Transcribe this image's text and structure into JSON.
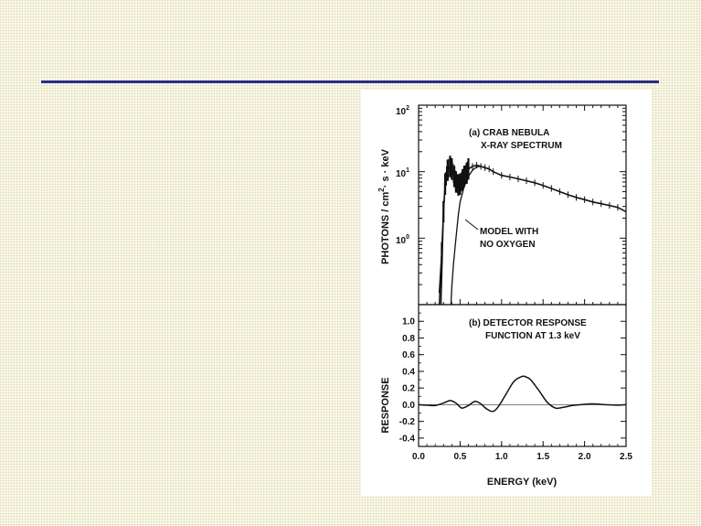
{
  "theme": {
    "rule_color": "#2a2d8a",
    "background": "#fbfaea",
    "ink": "#111111"
  },
  "chart_data": [
    {
      "id": "a",
      "type": "line",
      "title": "(a) CRAB NEBULA X-RAY SPECTRUM",
      "title_lines": [
        "(a) CRAB NEBULA",
        "X-RAY SPECTRUM"
      ],
      "ylabel": "PHOTONS / cm²· s · keV",
      "ylabel_parts": [
        "PHOTONS / cm",
        "2",
        "· s · keV"
      ],
      "xlabel": "",
      "yscale": "log",
      "xlim": [
        0,
        2.5
      ],
      "ylim": [
        0.1,
        100
      ],
      "yticks": [
        {
          "value": 100,
          "base": "10",
          "exp": "2"
        },
        {
          "value": 10,
          "base": "10",
          "exp": "1"
        },
        {
          "value": 1,
          "base": "10",
          "exp": "0"
        }
      ],
      "annotations": [
        {
          "lines": [
            "MODEL WITH",
            "NO OXYGEN"
          ],
          "at": [
            0.63,
            2.0
          ],
          "arrow_to": [
            0.5,
            4.2
          ]
        }
      ],
      "series": [
        {
          "role": "measured",
          "x": [
            0.25,
            0.28,
            0.3,
            0.32,
            0.35,
            0.38,
            0.4,
            0.43,
            0.45,
            0.48,
            0.5,
            0.53,
            0.55,
            0.58,
            0.6,
            0.65,
            0.7,
            0.75,
            0.8,
            0.85,
            0.9,
            1.0,
            1.1,
            1.2,
            1.3,
            1.4,
            1.5,
            1.6,
            1.7,
            1.8,
            1.9,
            2.0,
            2.1,
            2.2,
            2.3,
            2.4,
            2.5
          ],
          "y": [
            0.15,
            0.6,
            2.5,
            6.5,
            10.5,
            12.0,
            11.0,
            8.5,
            7.0,
            6.3,
            6.5,
            7.5,
            8.5,
            9.5,
            11.0,
            12.0,
            12.5,
            12.0,
            11.5,
            11.0,
            10.0,
            8.8,
            8.3,
            7.8,
            7.3,
            6.8,
            6.2,
            5.6,
            5.0,
            4.5,
            4.1,
            3.8,
            3.5,
            3.3,
            3.1,
            2.9,
            2.5
          ]
        },
        {
          "role": "model_no_oxygen",
          "x": [
            0.39,
            0.4,
            0.42,
            0.45,
            0.48,
            0.5,
            0.55,
            0.6,
            0.65,
            0.7,
            0.75,
            0.8
          ],
          "y": [
            0.1,
            0.18,
            0.4,
            1.0,
            2.3,
            3.5,
            6.0,
            8.5,
            10.5,
            11.8,
            12.0,
            11.5
          ]
        }
      ]
    },
    {
      "id": "b",
      "type": "line",
      "title": "(b) DETECTOR RESPONSE FUNCTION AT 1.3 keV",
      "title_lines": [
        "(b) DETECTOR RESPONSE",
        "FUNCTION AT 1.3 keV"
      ],
      "xlabel": "ENERGY (keV)",
      "ylabel": "RESPONSE",
      "xlim": [
        0,
        2.5
      ],
      "ylim": [
        -0.5,
        1.2
      ],
      "xticks": [
        "0.0",
        "0.5",
        "1.0",
        "1.5",
        "2.0",
        "2.5"
      ],
      "yticks": [
        "1.0",
        "0.8",
        "0.6",
        "0.4",
        "0.2",
        "0.0",
        "-0.2",
        "-0.4"
      ],
      "series": [
        {
          "role": "response",
          "x": [
            0.0,
            0.1,
            0.2,
            0.3,
            0.38,
            0.45,
            0.52,
            0.6,
            0.68,
            0.75,
            0.82,
            0.9,
            0.97,
            1.05,
            1.15,
            1.25,
            1.3,
            1.35,
            1.45,
            1.55,
            1.65,
            1.75,
            1.85,
            1.95,
            2.1,
            2.25,
            2.4,
            2.5
          ],
          "y": [
            0.0,
            -0.005,
            -0.01,
            0.02,
            0.05,
            0.02,
            -0.04,
            -0.01,
            0.04,
            0.01,
            -0.05,
            -0.08,
            -0.01,
            0.12,
            0.28,
            0.34,
            0.33,
            0.3,
            0.17,
            0.03,
            -0.04,
            -0.03,
            -0.01,
            0.0,
            0.01,
            0.0,
            -0.005,
            0.0
          ]
        }
      ]
    }
  ]
}
